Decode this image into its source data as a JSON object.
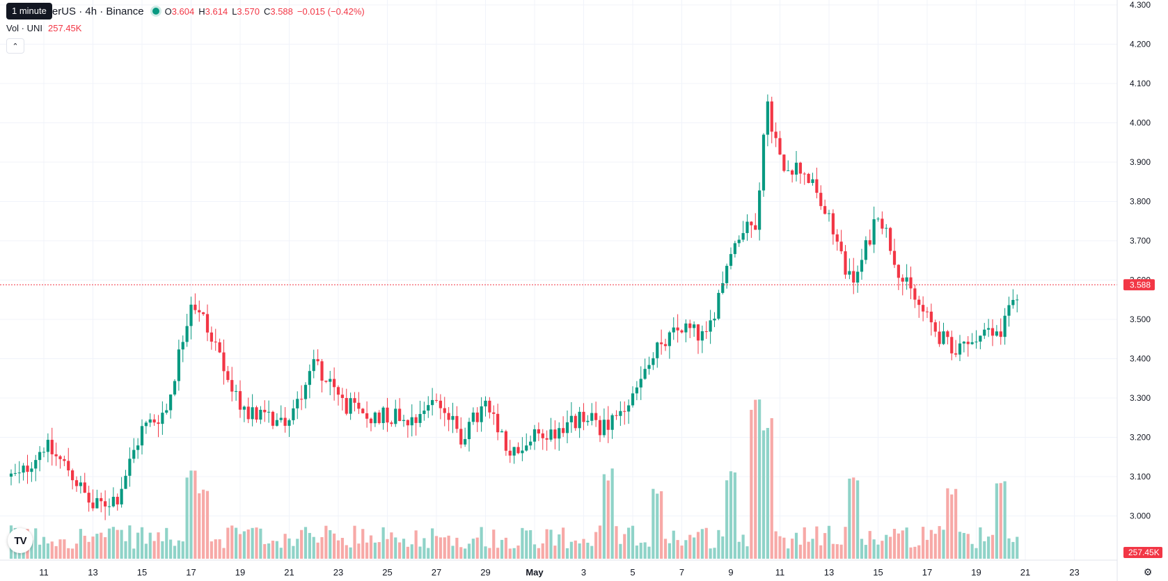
{
  "legend": {
    "symbol_text": "etherUS · 4h · Binance",
    "ohlc": [
      {
        "k": "O",
        "v": "3.604"
      },
      {
        "k": "H",
        "v": "3.614"
      },
      {
        "k": "L",
        "v": "3.570"
      },
      {
        "k": "C",
        "v": "3.588"
      }
    ],
    "change": "−0.015 (−0.42%)",
    "volume_label": "Vol · UNI",
    "volume_value": "257.45K"
  },
  "tooltip": "1 minute",
  "icons": {
    "collapse": "chevron-up-icon",
    "logo": "tradingview-logo-icon",
    "settings": "gear-icon"
  },
  "logo_text": "TV",
  "colors": {
    "up": "#089981",
    "down": "#f23645",
    "vol_up": "#8fd3c8",
    "vol_down": "#f7a9a7",
    "grid": "#f0f3fa"
  },
  "chart_data": {
    "type": "candlestick",
    "y_ticks": [
      "4.300",
      "4.200",
      "4.100",
      "4.000",
      "3.900",
      "3.800",
      "3.700",
      "3.600",
      "3.500",
      "3.400",
      "3.300",
      "3.200",
      "3.100",
      "3.000"
    ],
    "ylim": [
      2.875,
      4.3
    ],
    "x_ticks": [
      "11",
      "13",
      "15",
      "17",
      "19",
      "21",
      "23",
      "25",
      "27",
      "29",
      "May",
      "3",
      "5",
      "7",
      "9",
      "11",
      "13",
      "15",
      "17",
      "19",
      "21",
      "23"
    ],
    "last_price": "3.588",
    "last_price_value": 3.588,
    "last_volume": "257.45K",
    "path_points": [
      {
        "date": "2024-04-10",
        "price": 3.1
      },
      {
        "date": "2024-04-11",
        "price": 3.18
      },
      {
        "date": "2024-04-12",
        "price": 3.12
      },
      {
        "date": "2024-04-13",
        "price": 3.02
      },
      {
        "date": "2024-04-14",
        "price": 3.05
      },
      {
        "date": "2024-04-15",
        "price": 3.22
      },
      {
        "date": "2024-04-16",
        "price": 3.27
      },
      {
        "date": "2024-04-17",
        "price": 3.55
      },
      {
        "date": "2024-04-17T12:00",
        "price": 3.5
      },
      {
        "date": "2024-04-18",
        "price": 3.42
      },
      {
        "date": "2024-04-19",
        "price": 3.28
      },
      {
        "date": "2024-04-20",
        "price": 3.25
      },
      {
        "date": "2024-04-21",
        "price": 3.24
      },
      {
        "date": "2024-04-22",
        "price": 3.4
      },
      {
        "date": "2024-04-23",
        "price": 3.3
      },
      {
        "date": "2024-04-24",
        "price": 3.25
      },
      {
        "date": "2024-04-25",
        "price": 3.26
      },
      {
        "date": "2024-04-26",
        "price": 3.25
      },
      {
        "date": "2024-04-27",
        "price": 3.3
      },
      {
        "date": "2024-04-28",
        "price": 3.2
      },
      {
        "date": "2024-04-29",
        "price": 3.28
      },
      {
        "date": "2024-04-30",
        "price": 3.15
      },
      {
        "date": "2024-05-01",
        "price": 3.2
      },
      {
        "date": "2024-05-02",
        "price": 3.22
      },
      {
        "date": "2024-05-03",
        "price": 3.25
      },
      {
        "date": "2024-05-04",
        "price": 3.22
      },
      {
        "date": "2024-05-05",
        "price": 3.3
      },
      {
        "date": "2024-05-06",
        "price": 3.42
      },
      {
        "date": "2024-05-07",
        "price": 3.48
      },
      {
        "date": "2024-05-08",
        "price": 3.45
      },
      {
        "date": "2024-05-09",
        "price": 3.68
      },
      {
        "date": "2024-05-10",
        "price": 3.75
      },
      {
        "date": "2024-05-10T12:00",
        "price": 4.05
      },
      {
        "date": "2024-05-11",
        "price": 3.9
      },
      {
        "date": "2024-05-12",
        "price": 3.88
      },
      {
        "date": "2024-05-13",
        "price": 3.75
      },
      {
        "date": "2024-05-14",
        "price": 3.58
      },
      {
        "date": "2024-05-15",
        "price": 3.78
      },
      {
        "date": "2024-05-16",
        "price": 3.6
      },
      {
        "date": "2024-05-17",
        "price": 3.5
      },
      {
        "date": "2024-05-18",
        "price": 3.42
      },
      {
        "date": "2024-05-19",
        "price": 3.45
      },
      {
        "date": "2024-05-20",
        "price": 3.47
      },
      {
        "date": "2024-05-21",
        "price": 3.62
      },
      {
        "date": "2024-05-22",
        "price": 3.59
      }
    ],
    "volume_spikes": [
      {
        "date": "2024-04-17",
        "value": 0.55
      },
      {
        "date": "2024-04-17T12:00",
        "value": 0.45
      },
      {
        "date": "2024-05-04",
        "value": 0.55
      },
      {
        "date": "2024-05-06",
        "value": 0.45
      },
      {
        "date": "2024-05-09",
        "value": 0.55
      },
      {
        "date": "2024-05-10",
        "value": 1.0
      },
      {
        "date": "2024-05-10T12:00",
        "value": 0.9
      },
      {
        "date": "2024-05-14",
        "value": 0.55
      },
      {
        "date": "2024-05-18",
        "value": 0.45
      },
      {
        "date": "2024-05-20",
        "value": 0.5
      }
    ],
    "grid": true
  }
}
